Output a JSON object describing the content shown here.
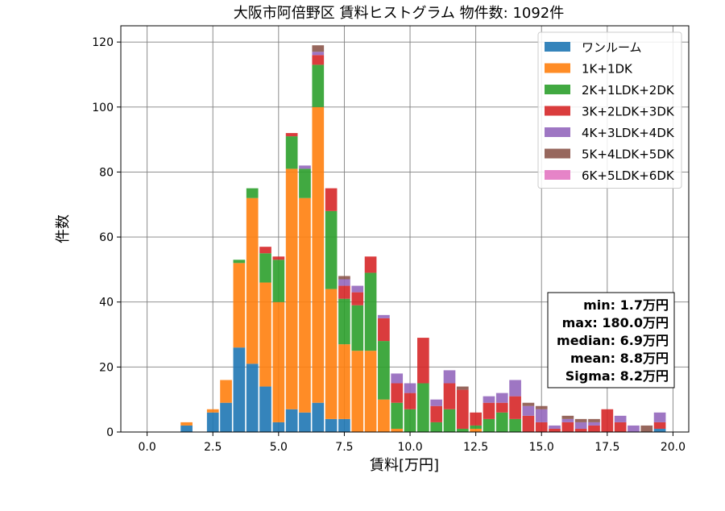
{
  "chart_data": {
    "type": "bar",
    "stacked": true,
    "title": "大阪市阿倍野区 賃料ヒストグラム  物件数: 1092件",
    "xlabel": "賃料[万円]",
    "ylabel": "件数",
    "xlim": [
      -1,
      20.6
    ],
    "ylim": [
      0,
      125
    ],
    "xticks": [
      0.0,
      2.5,
      5.0,
      7.5,
      10.0,
      12.5,
      15.0,
      17.5,
      20.0
    ],
    "xtick_labels": [
      "0.0",
      "2.5",
      "5.0",
      "7.5",
      "10.0",
      "12.5",
      "15.0",
      "17.5",
      "20.0"
    ],
    "yticks": [
      0,
      20,
      40,
      60,
      80,
      100,
      120
    ],
    "ytick_labels": [
      "0",
      "20",
      "40",
      "60",
      "80",
      "100",
      "120"
    ],
    "grid": true,
    "legend_position": "top-right",
    "bin_width": 0.5,
    "bin_starts": [
      1.25,
      2.25,
      2.75,
      3.25,
      3.75,
      4.25,
      4.75,
      5.25,
      5.75,
      6.25,
      6.75,
      7.25,
      7.75,
      8.25,
      8.75,
      9.25,
      9.75,
      10.25,
      10.75,
      11.25,
      11.75,
      12.25,
      12.75,
      13.25,
      13.75,
      14.25,
      14.75,
      15.25,
      15.75,
      16.25,
      16.75,
      17.25,
      17.75,
      18.25,
      18.75,
      19.25
    ],
    "series": [
      {
        "name": "ワンルーム",
        "color": "#1f77b4",
        "values": [
          2,
          6,
          9,
          26,
          21,
          14,
          3,
          7,
          6,
          9,
          4,
          4,
          0,
          0,
          0,
          0,
          0,
          0,
          0,
          0,
          0,
          0,
          0,
          0,
          0,
          0,
          0,
          0,
          0,
          0,
          0,
          0,
          0,
          0,
          0,
          1
        ]
      },
      {
        "name": "1K+1DK",
        "color": "#ff7f0e",
        "values": [
          1,
          1,
          7,
          26,
          51,
          32,
          37,
          74,
          66,
          91,
          40,
          23,
          25,
          25,
          10,
          1,
          0,
          0,
          0,
          0,
          0,
          1,
          0,
          0,
          0,
          0,
          0,
          0,
          0,
          0,
          0,
          0,
          0,
          0,
          0,
          0
        ]
      },
      {
        "name": "2K+1LDK+2DK",
        "color": "#2ca02c",
        "values": [
          0,
          0,
          0,
          1,
          3,
          9,
          13,
          10,
          9,
          13,
          24,
          14,
          14,
          24,
          18,
          8,
          7,
          15,
          3,
          7,
          1,
          1,
          4,
          6,
          4,
          0,
          0,
          0,
          0,
          0,
          0,
          0,
          0,
          0,
          0,
          0
        ]
      },
      {
        "name": "3K+2LDK+3DK",
        "color": "#d62728",
        "values": [
          0,
          0,
          0,
          0,
          0,
          2,
          1,
          1,
          0,
          3,
          7,
          4,
          4,
          5,
          7,
          6,
          5,
          14,
          5,
          8,
          12,
          4,
          5,
          3,
          7,
          5,
          3,
          1,
          3,
          1,
          2,
          7,
          3,
          0,
          0,
          2
        ]
      },
      {
        "name": "4K+3LDK+4DK",
        "color": "#9467bd",
        "values": [
          0,
          0,
          0,
          0,
          0,
          0,
          0,
          0,
          1,
          1,
          0,
          2,
          2,
          0,
          1,
          3,
          3,
          0,
          2,
          4,
          0,
          0,
          2,
          3,
          5,
          3,
          4,
          1,
          1,
          2,
          1,
          0,
          2,
          2,
          0,
          3
        ]
      },
      {
        "name": "5K+4LDK+5DK",
        "color": "#8c564b",
        "values": [
          0,
          0,
          0,
          0,
          0,
          0,
          0,
          0,
          0,
          2,
          0,
          1,
          0,
          0,
          0,
          0,
          0,
          0,
          0,
          0,
          1,
          0,
          0,
          0,
          0,
          1,
          1,
          0,
          1,
          1,
          1,
          0,
          0,
          0,
          2,
          0
        ]
      },
      {
        "name": "6K+5LDK+6DK",
        "color": "#e377c2",
        "values": [
          0,
          0,
          0,
          0,
          0,
          0,
          0,
          0,
          0,
          0,
          0,
          0,
          0,
          0,
          0,
          0,
          0,
          0,
          0,
          0,
          0,
          0,
          0,
          0,
          0,
          0,
          0,
          0,
          0,
          0,
          0,
          0,
          0,
          0,
          0,
          0
        ]
      }
    ],
    "stats_box": [
      "min: 1.7万円",
      "max: 180.0万円",
      "median: 6.9万円",
      "mean: 8.8万円",
      "Sigma: 8.2万円"
    ]
  }
}
